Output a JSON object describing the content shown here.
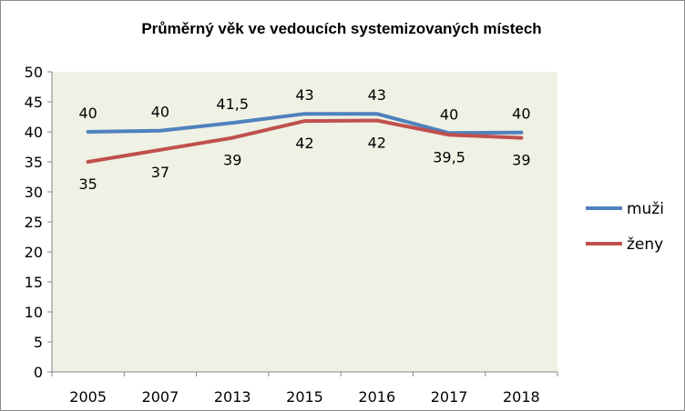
{
  "chart_data": {
    "type": "line",
    "title": "Průměrný věk ve vedoucích systemizovaných místech",
    "xlabel": "",
    "ylabel": "",
    "categories": [
      "2005",
      "2007",
      "2013",
      "2015",
      "2016",
      "2017",
      "2018"
    ],
    "ylim": [
      0,
      50
    ],
    "yticks": [
      0,
      5,
      10,
      15,
      20,
      25,
      30,
      35,
      40,
      45,
      50
    ],
    "grid": false,
    "legend_position": "right",
    "plot_background": "#eef1e4",
    "series": [
      {
        "name": "muži",
        "color": "#4f81bd",
        "values": [
          40,
          40.2,
          41.5,
          43,
          43,
          39.8,
          39.9
        ],
        "labels": [
          "40",
          "40",
          "41,5",
          "43",
          "43",
          "40",
          "40"
        ]
      },
      {
        "name": "ženy",
        "color": "#c0504d",
        "values": [
          35,
          37,
          39,
          41.8,
          41.9,
          39.5,
          39
        ],
        "labels": [
          "35",
          "37",
          "39",
          "42",
          "42",
          "39,5",
          "39"
        ]
      }
    ]
  }
}
